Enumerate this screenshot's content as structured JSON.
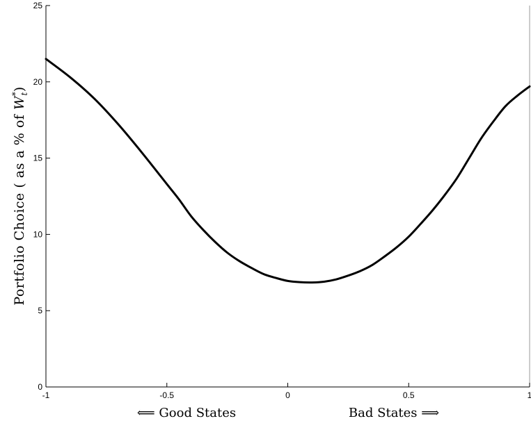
{
  "chart_data": {
    "type": "line",
    "title": "",
    "xlabel_left": "⟸ Good States",
    "xlabel_right": "Bad States ⟹",
    "ylabel": "Portfolio Choice (as a % of W*t)",
    "ylabel_prefix": "Portfolio Choice ( as a % of ",
    "ylabel_var": "W",
    "ylabel_sup": "*",
    "ylabel_sub": "t",
    "ylabel_suffix": ")",
    "xlim": [
      -1,
      1
    ],
    "ylim": [
      0,
      25
    ],
    "xticks": [
      -1,
      -0.5,
      0,
      0.5,
      1
    ],
    "xtick_labels": [
      "-1",
      "-0.5",
      "0",
      "0.5",
      "1"
    ],
    "yticks": [
      0,
      5,
      10,
      15,
      20,
      25
    ],
    "ytick_labels": [
      "0",
      "5",
      "10",
      "15",
      "20",
      "25"
    ],
    "grid": false,
    "series": [
      {
        "x": [
          -1.0,
          -0.9,
          -0.8,
          -0.7,
          -0.6,
          -0.5,
          -0.45,
          -0.4,
          -0.35,
          -0.3,
          -0.25,
          -0.2,
          -0.15,
          -0.1,
          -0.05,
          0.0,
          0.05,
          0.1,
          0.15,
          0.2,
          0.25,
          0.3,
          0.35,
          0.4,
          0.45,
          0.5,
          0.55,
          0.6,
          0.65,
          0.7,
          0.75,
          0.8,
          0.85,
          0.9,
          0.95,
          1.0
        ],
        "values": [
          21.5,
          20.3,
          18.9,
          17.2,
          15.3,
          13.3,
          12.3,
          11.2,
          10.3,
          9.5,
          8.8,
          8.25,
          7.8,
          7.4,
          7.15,
          6.95,
          6.87,
          6.85,
          6.9,
          7.05,
          7.3,
          7.6,
          8.0,
          8.55,
          9.15,
          9.85,
          10.7,
          11.6,
          12.6,
          13.7,
          15.0,
          16.3,
          17.4,
          18.4,
          19.1,
          19.7
        ],
        "color": "#000000"
      }
    ]
  }
}
